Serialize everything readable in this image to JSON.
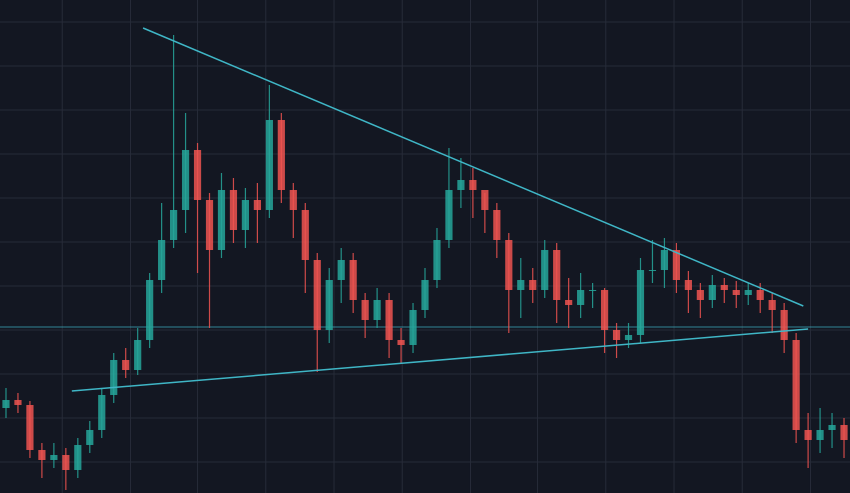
{
  "chart_data": {
    "type": "candlestick",
    "background": "#131722",
    "grid_color": "#262b38",
    "up_color": "#26a69a",
    "down_color": "#ef5350",
    "grid": true,
    "x": [
      0,
      1,
      2,
      3,
      4,
      5,
      6,
      7,
      8,
      9,
      10,
      11,
      12,
      13,
      14,
      15,
      16,
      17,
      18,
      19,
      20,
      21,
      22,
      23,
      24,
      25,
      26,
      27,
      28,
      29,
      30,
      31,
      32,
      33,
      34,
      35,
      36,
      37,
      38,
      39,
      40,
      41,
      42,
      43,
      44,
      45,
      46,
      47,
      48,
      49,
      50,
      51,
      52,
      53,
      54,
      55,
      56,
      57,
      58,
      59,
      60,
      61,
      62,
      63,
      64,
      65,
      66,
      67,
      68,
      69,
      70
    ],
    "open": [
      85,
      93,
      88,
      43,
      33,
      38,
      23,
      48,
      63,
      98,
      133,
      123,
      153,
      213,
      253,
      283,
      343,
      293,
      243,
      303,
      263,
      293,
      283,
      373,
      303,
      283,
      233,
      163,
      213,
      233,
      193,
      173,
      193,
      153,
      148,
      183,
      213,
      253,
      303,
      313,
      303,
      283,
      253,
      203,
      213,
      203,
      243,
      193,
      188,
      203,
      203,
      163,
      153,
      158,
      223,
      223,
      243,
      213,
      203,
      193,
      208,
      203,
      198,
      203,
      193,
      183,
      153,
      63,
      53,
      63,
      68
    ],
    "high": [
      105,
      100,
      92,
      50,
      50,
      45,
      55,
      72,
      105,
      140,
      145,
      165,
      220,
      290,
      458,
      380,
      350,
      300,
      320,
      315,
      305,
      310,
      408,
      380,
      310,
      290,
      240,
      225,
      245,
      240,
      200,
      205,
      200,
      165,
      190,
      225,
      265,
      345,
      335,
      325,
      300,
      290,
      260,
      235,
      225,
      253,
      250,
      215,
      220,
      210,
      205,
      170,
      170,
      235,
      253,
      255,
      250,
      222,
      210,
      218,
      215,
      212,
      210,
      210,
      200,
      190,
      160,
      80,
      85,
      80,
      75
    ],
    "low": [
      75,
      80,
      35,
      15,
      25,
      3,
      15,
      40,
      55,
      90,
      115,
      118,
      145,
      200,
      245,
      260,
      220,
      165,
      235,
      250,
      245,
      250,
      275,
      290,
      255,
      200,
      121,
      150,
      190,
      180,
      155,
      165,
      135,
      130,
      140,
      175,
      205,
      245,
      285,
      275,
      260,
      235,
      160,
      175,
      190,
      195,
      170,
      165,
      175,
      185,
      140,
      135,
      145,
      150,
      210,
      205,
      200,
      180,
      175,
      185,
      190,
      185,
      188,
      180,
      160,
      140,
      50,
      25,
      40,
      45,
      35
    ],
    "close": [
      93,
      88,
      43,
      33,
      38,
      23,
      48,
      63,
      98,
      133,
      123,
      153,
      213,
      253,
      283,
      343,
      293,
      243,
      303,
      263,
      293,
      283,
      373,
      303,
      283,
      233,
      163,
      213,
      233,
      193,
      173,
      193,
      153,
      148,
      183,
      213,
      253,
      303,
      313,
      303,
      283,
      253,
      203,
      213,
      203,
      243,
      193,
      188,
      203,
      203,
      163,
      153,
      158,
      223,
      223,
      243,
      213,
      203,
      193,
      208,
      203,
      198,
      203,
      193,
      183,
      153,
      63,
      53,
      63,
      68,
      53
    ],
    "xlim": [
      -0.5,
      70.5
    ],
    "ylim": [
      0,
      493
    ],
    "xticks": [
      4.7,
      10.4,
      16.0,
      21.7,
      27.4,
      33.1,
      38.8,
      44.4,
      50.1,
      55.8,
      61.5,
      67.2
    ],
    "yticks": [
      31,
      75,
      119,
      163,
      207,
      251,
      295,
      339,
      383,
      427,
      471
    ],
    "hline": {
      "y": 166,
      "color": "#3fb6c6"
    },
    "trendlines": [
      {
        "x": [
          11.45,
          66.6
        ],
        "y": [
          465,
          187
        ],
        "color": "#3fb6c6"
      },
      {
        "x": [
          5.5,
          67.0
        ],
        "y": [
          102,
          164
        ],
        "color": "#3fb6c6"
      }
    ]
  }
}
